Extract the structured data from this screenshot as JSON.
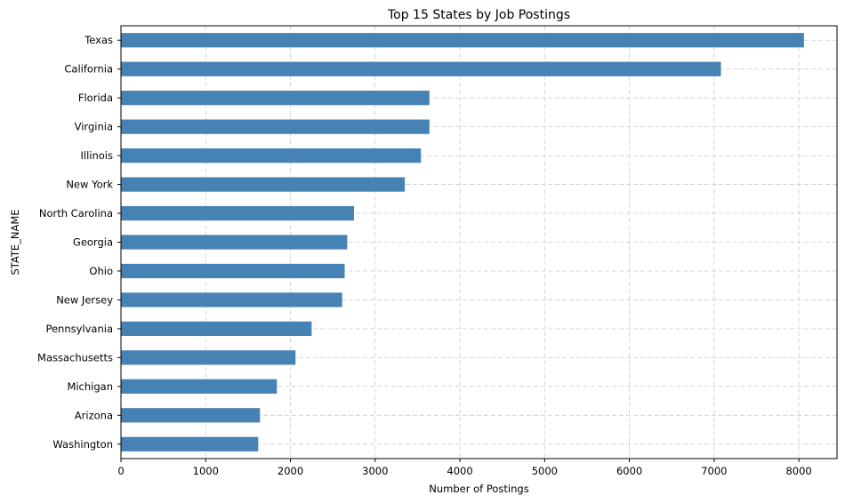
{
  "chart_data": {
    "type": "bar",
    "orientation": "horizontal",
    "title": "Top 15 States by Job Postings",
    "xlabel": "Number of Postings",
    "ylabel": "STATE_NAME",
    "xlim": [
      0,
      8450
    ],
    "xticks": [
      0,
      1000,
      2000,
      3000,
      4000,
      5000,
      6000,
      7000,
      8000
    ],
    "grid": true,
    "grid_style": "dashed",
    "bar_color": "#4682b4",
    "categories": [
      "Texas",
      "California",
      "Florida",
      "Virginia",
      "Illinois",
      "New York",
      "North Carolina",
      "Georgia",
      "Ohio",
      "New Jersey",
      "Pennsylvania",
      "Massachusetts",
      "Michigan",
      "Arizona",
      "Washington"
    ],
    "values": [
      8060,
      7080,
      3640,
      3640,
      3540,
      3350,
      2750,
      2670,
      2640,
      2610,
      2250,
      2060,
      1840,
      1640,
      1620
    ]
  }
}
